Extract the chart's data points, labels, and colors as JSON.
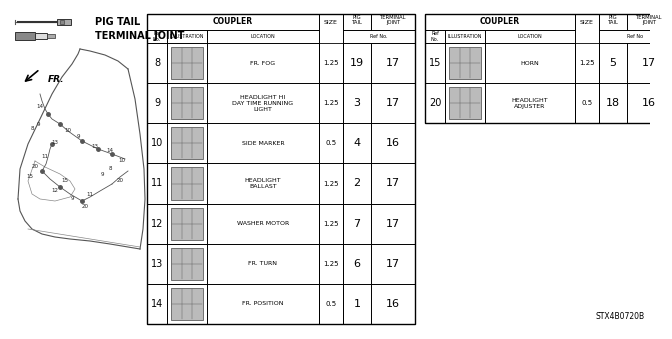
{
  "title": "STX4B0720B",
  "bg": "#ffffff",
  "left_table_rows": [
    {
      "ref": "8",
      "location": "FR. FOG",
      "size": "1.25",
      "pig": "19",
      "term": "17"
    },
    {
      "ref": "9",
      "location": "HEADLIGHT HI\nDAY TIME RUNNING\nLIGHT",
      "size": "1.25",
      "pig": "3",
      "term": "17"
    },
    {
      "ref": "10",
      "location": "SIDE MARKER",
      "size": "0.5",
      "pig": "4",
      "term": "16"
    },
    {
      "ref": "11",
      "location": "HEADLIGHT\nBALLAST",
      "size": "1.25",
      "pig": "2",
      "term": "17"
    },
    {
      "ref": "12",
      "location": "WASHER MOTOR",
      "size": "1.25",
      "pig": "7",
      "term": "17"
    },
    {
      "ref": "13",
      "location": "FR. TURN",
      "size": "1.25",
      "pig": "6",
      "term": "17"
    },
    {
      "ref": "14",
      "location": "FR. POSITION",
      "size": "0.5",
      "pig": "1",
      "term": "16"
    }
  ],
  "right_table_rows": [
    {
      "ref": "15",
      "location": "HORN",
      "size": "1.25",
      "pig": "5",
      "term": "17"
    },
    {
      "ref": "20",
      "location": "HEADLIGHT\nADJUSTER",
      "size": "0.5",
      "pig": "18",
      "term": "16"
    }
  ],
  "legend_pig_tail": "PIG TAIL",
  "legend_terminal": "TERMINAL JOINT",
  "diagram_label": "FR."
}
